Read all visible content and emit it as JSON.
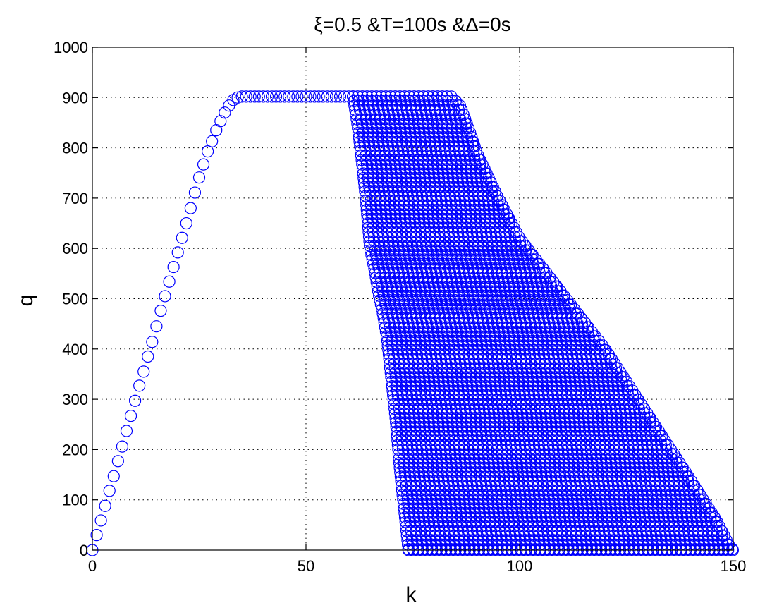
{
  "chart_data": {
    "type": "scatter",
    "title": "ξ=0.5 &T=100s &Δ=0s",
    "xlabel": "k",
    "ylabel": "q",
    "xlim": [
      0,
      150
    ],
    "ylim": [
      0,
      1000
    ],
    "xticks": [
      0,
      50,
      100,
      150
    ],
    "yticks": [
      0,
      100,
      200,
      300,
      400,
      500,
      600,
      700,
      800,
      900,
      1000
    ],
    "x_tick_labels": [
      "0",
      "50",
      "100",
      "150"
    ],
    "y_tick_labels": [
      "0",
      "100",
      "200",
      "300",
      "400",
      "500",
      "600",
      "700",
      "800",
      "900",
      "1000"
    ],
    "grid": true,
    "marker": "circle",
    "marker_color": "#0000ff",
    "series": [
      {
        "description": "free-flow branch",
        "x": [
          0,
          1,
          2,
          3,
          4,
          5,
          6,
          7,
          8,
          9,
          10,
          11,
          12,
          13,
          14,
          15,
          16,
          17,
          18,
          19,
          20,
          21,
          22,
          23,
          24,
          25,
          26,
          27,
          28,
          29,
          30,
          31,
          32,
          33,
          34,
          35,
          36,
          37,
          38,
          39,
          40,
          41,
          42,
          43,
          44,
          45,
          46,
          47,
          48,
          49,
          50,
          51,
          52,
          53,
          54,
          55,
          56,
          57,
          58,
          59,
          60,
          61
        ],
        "y": [
          0,
          30,
          59,
          88,
          118,
          147,
          177,
          206,
          237,
          267,
          297,
          327,
          355,
          385,
          414,
          445,
          476,
          505,
          534,
          563,
          592,
          621,
          650,
          680,
          711,
          741,
          767,
          793,
          813,
          835,
          853,
          870,
          884,
          895,
          900,
          902,
          902,
          902,
          902,
          902,
          902,
          902,
          902,
          902,
          902,
          902,
          902,
          902,
          902,
          902,
          902,
          902,
          902,
          902,
          902,
          902,
          902,
          902,
          902,
          902,
          902,
          902
        ]
      },
      {
        "description": "congested region",
        "q_max": 902,
        "plateau_x_range": [
          61,
          84
        ],
        "left_boundary": [
          [
            61,
            902
          ],
          [
            62,
            850
          ],
          [
            63,
            780
          ],
          [
            64,
            700
          ],
          [
            65,
            600
          ],
          [
            66,
            560
          ],
          [
            67,
            510
          ],
          [
            68,
            470
          ],
          [
            69,
            420
          ],
          [
            70,
            340
          ],
          [
            71,
            260
          ],
          [
            72,
            160
          ],
          [
            73,
            80
          ],
          [
            74,
            0
          ]
        ],
        "right_boundary": [
          [
            84,
            902
          ],
          [
            86,
            885
          ],
          [
            88,
            840
          ],
          [
            90,
            790
          ],
          [
            95,
            700
          ],
          [
            100,
            620
          ],
          [
            110,
            510
          ],
          [
            120,
            400
          ],
          [
            130,
            270
          ],
          [
            140,
            140
          ],
          [
            146,
            60
          ],
          [
            149,
            10
          ],
          [
            150,
            0
          ]
        ],
        "floor_x_range": [
          74,
          150
        ]
      }
    ]
  }
}
